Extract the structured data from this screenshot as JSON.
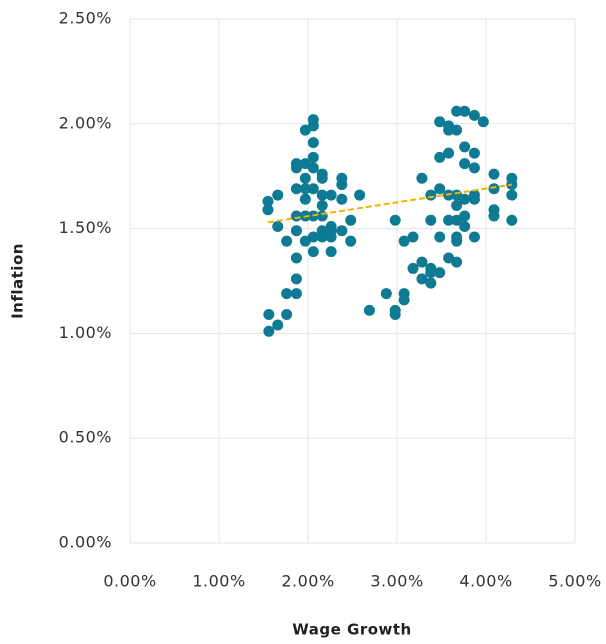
{
  "chart_data": {
    "type": "scatter",
    "x_label": "Wage Growth",
    "y_label": "Inflation",
    "color": "#0e7a94",
    "x": [
      1.55,
      1.55,
      1.66,
      1.66,
      1.56,
      1.56,
      1.66,
      1.76,
      1.76,
      1.87,
      1.87,
      1.87,
      1.76,
      1.87,
      1.87,
      1.87,
      1.87,
      1.87,
      1.97,
      1.97,
      1.97,
      1.97,
      1.97,
      1.97,
      1.97,
      2.06,
      2.06,
      2.06,
      2.06,
      2.06,
      2.06,
      2.06,
      2.06,
      2.06,
      2.16,
      2.16,
      2.16,
      2.16,
      2.16,
      2.16,
      2.16,
      2.26,
      2.26,
      2.26,
      2.26,
      2.26,
      2.38,
      2.38,
      2.38,
      2.38,
      2.48,
      2.48,
      2.58,
      2.69,
      2.88,
      2.98,
      2.98,
      2.98,
      3.08,
      3.08,
      3.08,
      3.18,
      3.18,
      3.28,
      3.28,
      3.28,
      3.38,
      3.38,
      3.38,
      3.38,
      3.38,
      3.48,
      3.48,
      3.48,
      3.48,
      3.48,
      3.58,
      3.58,
      3.58,
      3.58,
      3.58,
      3.58,
      3.67,
      3.67,
      3.67,
      3.67,
      3.67,
      3.67,
      3.67,
      3.67,
      3.76,
      3.76,
      3.76,
      3.76,
      3.76,
      3.76,
      3.87,
      3.87,
      3.87,
      3.87,
      3.87,
      3.87,
      3.97,
      4.09,
      4.09,
      4.09,
      4.09,
      4.29,
      4.29,
      4.29,
      4.29
    ],
    "y": [
      1.63,
      1.59,
      1.66,
      1.51,
      1.09,
      1.01,
      1.04,
      1.09,
      1.19,
      1.19,
      1.26,
      1.36,
      1.44,
      1.49,
      1.56,
      1.69,
      1.81,
      1.79,
      1.81,
      1.97,
      1.74,
      1.69,
      1.64,
      1.56,
      1.44,
      2.02,
      1.99,
      1.91,
      1.84,
      1.79,
      1.69,
      1.56,
      1.39,
      1.46,
      1.76,
      1.74,
      1.66,
      1.61,
      1.56,
      1.49,
      1.46,
      1.66,
      1.51,
      1.49,
      1.46,
      1.39,
      1.74,
      1.71,
      1.64,
      1.49,
      1.54,
      1.44,
      1.66,
      1.11,
      1.19,
      1.11,
      1.09,
      1.54,
      1.19,
      1.16,
      1.44,
      1.46,
      1.31,
      1.74,
      1.34,
      1.26,
      1.54,
      1.66,
      1.31,
      1.24,
      1.29,
      2.01,
      1.84,
      1.69,
      1.46,
      1.29,
      1.99,
      1.97,
      1.86,
      1.66,
      1.54,
      1.36,
      2.06,
      1.97,
      1.66,
      1.61,
      1.54,
      1.46,
      1.44,
      1.34,
      2.06,
      1.89,
      1.81,
      1.64,
      1.56,
      1.51,
      2.04,
      1.86,
      1.79,
      1.66,
      1.64,
      1.46,
      2.01,
      1.76,
      1.69,
      1.59,
      1.56,
      1.74,
      1.66,
      1.54,
      1.71
    ],
    "trendline": {
      "x": [
        1.55,
        4.29
      ],
      "y": [
        1.53,
        1.71
      ],
      "color": "#f0b400"
    },
    "xlim": [
      0,
      5
    ],
    "ylim": [
      0,
      2.5
    ],
    "xticks": [
      {
        "value": 0,
        "label": "0.00%"
      },
      {
        "value": 1,
        "label": "1.00%"
      },
      {
        "value": 2,
        "label": "2.00%"
      },
      {
        "value": 3,
        "label": "3.00%"
      },
      {
        "value": 4,
        "label": "4.00%"
      },
      {
        "value": 5,
        "label": "5.00%"
      }
    ],
    "yticks": [
      {
        "value": 0,
        "label": "0.00%"
      },
      {
        "value": 0.5,
        "label": "0.50%"
      },
      {
        "value": 1,
        "label": "1.00%"
      },
      {
        "value": 1.5,
        "label": "1.50%"
      },
      {
        "value": 2,
        "label": "2.00%"
      },
      {
        "value": 2.5,
        "label": "2.50%"
      }
    ],
    "grid": true
  }
}
